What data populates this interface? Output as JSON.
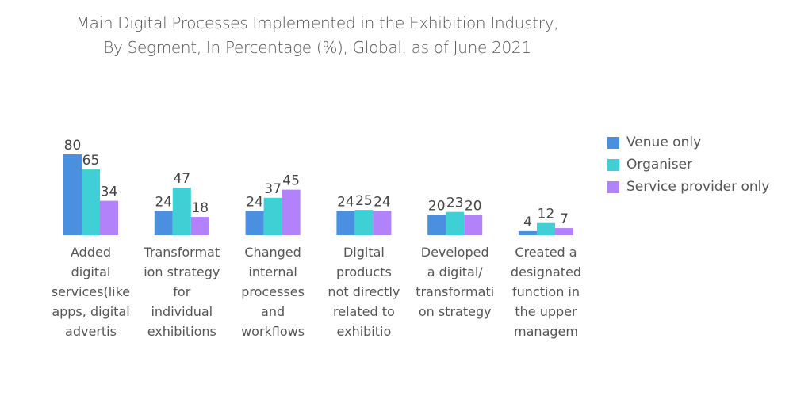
{
  "chart_data": {
    "type": "bar",
    "title": "Main Digital Processes Implemented in the Exhibition Industry,",
    "subtitle": "By Segment, In Percentage (%), Global, as of June 2021",
    "xlabel": "",
    "ylabel": "",
    "ylim": [
      0,
      80
    ],
    "grid": false,
    "legend_position": "right",
    "categories": [
      [
        "Added",
        "digital",
        "services(like",
        "apps, digital",
        "advertis"
      ],
      [
        "Transformat",
        "ion strategy",
        "for",
        "individual",
        "exhibitions"
      ],
      [
        "Changed",
        "internal",
        "processes",
        "and",
        "workflows"
      ],
      [
        "Digital",
        "products",
        "not directly",
        "related to",
        "exhibitio"
      ],
      [
        "Developed",
        "a digital/",
        "transformati",
        "on strategy"
      ],
      [
        "Created a",
        "designated",
        "function in",
        "the upper",
        "managem"
      ]
    ],
    "series": [
      {
        "name": "Venue only",
        "color": "#4a8fe0",
        "values": [
          80,
          24,
          24,
          24,
          20,
          4
        ]
      },
      {
        "name": "Organiser",
        "color": "#3fd0d6",
        "values": [
          65,
          47,
          37,
          25,
          23,
          12
        ]
      },
      {
        "name": "Service provider only",
        "color": "#b282fa",
        "values": [
          34,
          18,
          45,
          24,
          20,
          7
        ]
      }
    ]
  }
}
